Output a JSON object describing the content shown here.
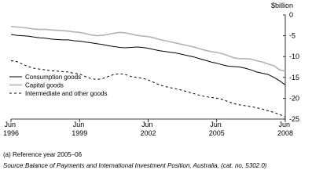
{
  "chart_data": {
    "type": "line",
    "y_label": "$billion",
    "categories": [
      "Jun 1996",
      null,
      null,
      null,
      null,
      null,
      null,
      null,
      null,
      null,
      null,
      null,
      "Jun 1999",
      null,
      null,
      null,
      null,
      null,
      null,
      null,
      null,
      null,
      null,
      null,
      "Jun 2002",
      null,
      null,
      null,
      null,
      null,
      null,
      null,
      null,
      null,
      null,
      null,
      "Jun 2005",
      null,
      null,
      null,
      null,
      null,
      null,
      null,
      null,
      null,
      null,
      null,
      "Jun 2008"
    ],
    "ylim": [
      -25,
      0
    ],
    "yticks": [
      0,
      -5,
      -10,
      -15,
      -20,
      -25
    ],
    "legend": "lower-left",
    "series": [
      {
        "name": "Consumption goods",
        "color": "#000000",
        "dash": "solid",
        "values": [
          -4.7,
          -4.9,
          -5.0,
          -5.1,
          -5.3,
          -5.5,
          -5.6,
          -5.8,
          -5.9,
          -6.0,
          -6.0,
          -6.2,
          -6.3,
          -6.5,
          -6.7,
          -6.9,
          -7.1,
          -7.4,
          -7.6,
          -7.8,
          -7.9,
          -7.8,
          -7.7,
          -7.8,
          -8.0,
          -8.3,
          -8.6,
          -8.8,
          -9.0,
          -9.2,
          -9.5,
          -9.8,
          -10.1,
          -10.5,
          -10.9,
          -11.3,
          -11.6,
          -12.0,
          -12.3,
          -12.4,
          -12.5,
          -12.8,
          -13.2,
          -13.7,
          -14.0,
          -14.3,
          -15.0,
          -15.8,
          -16.8
        ]
      },
      {
        "name": "Capital goods",
        "color": "#b3b3b3",
        "dash": "solid",
        "values": [
          -2.8,
          -2.9,
          -3.0,
          -3.2,
          -3.4,
          -3.5,
          -3.5,
          -3.6,
          -3.7,
          -3.8,
          -3.9,
          -4.1,
          -4.2,
          -4.5,
          -4.8,
          -5.0,
          -4.9,
          -4.7,
          -4.4,
          -4.2,
          -4.3,
          -4.6,
          -4.9,
          -5.1,
          -5.2,
          -5.5,
          -5.9,
          -6.2,
          -6.5,
          -6.8,
          -7.1,
          -7.4,
          -7.7,
          -8.1,
          -8.5,
          -8.8,
          -9.0,
          -9.3,
          -9.8,
          -10.3,
          -10.5,
          -10.5,
          -10.6,
          -11.0,
          -11.3,
          -11.8,
          -12.2,
          -13.2,
          -13.5
        ]
      },
      {
        "name": "Intermediate and other goods",
        "color": "#000000",
        "dash": "dashed",
        "values": [
          -11.0,
          -11.2,
          -11.8,
          -12.4,
          -12.8,
          -13.0,
          -13.2,
          -13.4,
          -13.5,
          -13.6,
          -13.7,
          -14.0,
          -14.2,
          -14.8,
          -15.3,
          -15.5,
          -15.3,
          -14.8,
          -14.3,
          -14.1,
          -14.3,
          -14.8,
          -15.0,
          -15.2,
          -15.6,
          -16.2,
          -16.8,
          -17.2,
          -17.5,
          -17.8,
          -18.1,
          -18.5,
          -18.9,
          -19.3,
          -19.6,
          -19.8,
          -20.0,
          -20.3,
          -20.8,
          -21.3,
          -21.6,
          -21.8,
          -22.0,
          -22.3,
          -22.6,
          -23.0,
          -23.4,
          -23.9,
          -24.5
        ]
      }
    ],
    "footnote": "(a) Reference year 2005–06",
    "source_label": "Source:",
    "source": "Balance of Payments and International Investment Position, Australia, (cat. no. 5302.0)"
  }
}
